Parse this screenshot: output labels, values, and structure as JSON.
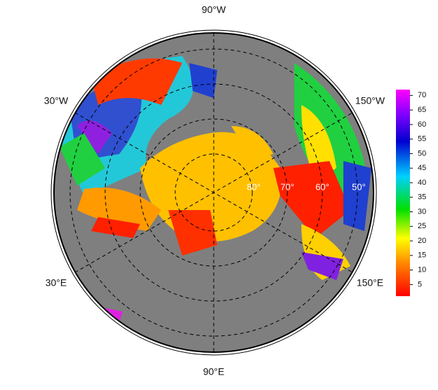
{
  "map": {
    "longitude_labels": [
      "90°W",
      "30°W",
      "150°W",
      "30°E",
      "150°E",
      "90°E"
    ],
    "latitude_labels": [
      "80°",
      "70°",
      "60°",
      "50°"
    ]
  },
  "colorbar": {
    "lim": [
      1,
      72
    ],
    "ticks": [
      5,
      10,
      15,
      20,
      25,
      30,
      35,
      40,
      45,
      50,
      55,
      60,
      65,
      70
    ]
  }
}
